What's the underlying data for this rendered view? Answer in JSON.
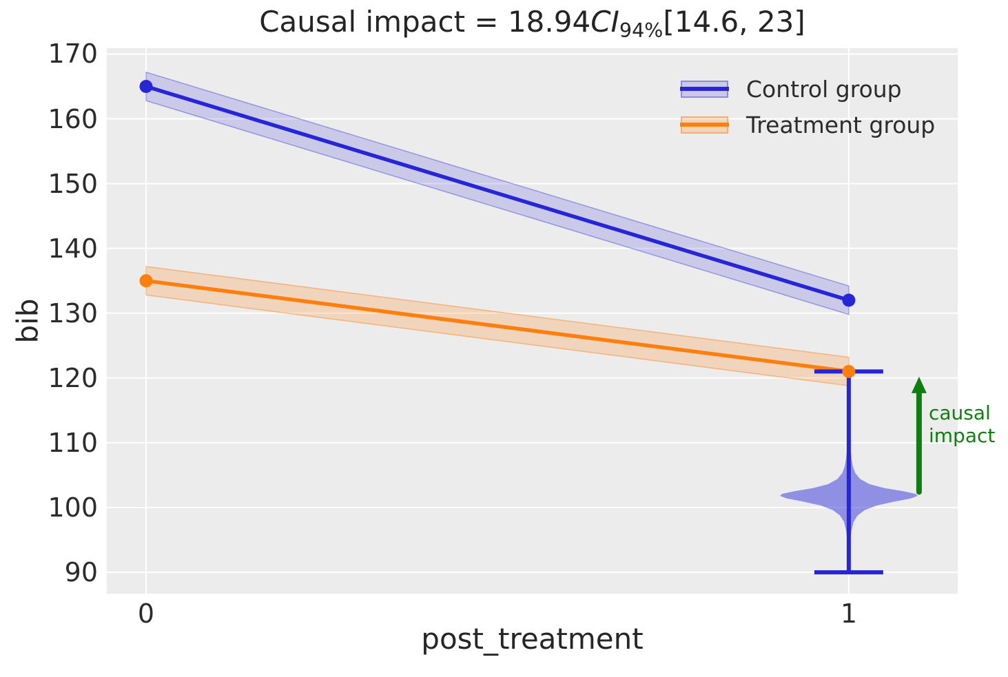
{
  "figure": {
    "background": "#ffffff",
    "plot_background": "#ececec",
    "grid_color": "#ffffff",
    "text_color": "#262626"
  },
  "chart_data": {
    "type": "line",
    "title": "Causal impact = 18.94CI94%[14.6, 23]",
    "title_parts": {
      "prefix": "Causal impact = 18.94",
      "ci": "CI",
      "ci_sub": "94%",
      "interval": "[14.6, 23]"
    },
    "xlabel": "post_treatment",
    "ylabel": "bib",
    "xlim": [
      -0.0559,
      1.155
    ],
    "ylim": [
      86.7,
      170.9
    ],
    "xticks": [
      0,
      1
    ],
    "yticks": [
      90,
      100,
      110,
      120,
      130,
      140,
      150,
      160,
      170
    ],
    "grid": true,
    "legend_position": "upper right",
    "x": [
      0,
      1
    ],
    "series": [
      {
        "name": "Control group",
        "color": "#2626d8",
        "band_fill": "rgba(38,38,216,0.17)",
        "band_edge": "rgba(38,38,216,0.38)",
        "values": [
          165,
          132
        ],
        "ci_lower": [
          162.8,
          129.8
        ],
        "ci_upper": [
          167.2,
          134.2
        ]
      },
      {
        "name": "Treatment group",
        "color": "#ff7f0e",
        "band_fill": "rgba(255,127,14,0.22)",
        "band_edge": "rgba(255,127,14,0.45)",
        "values": [
          135,
          121
        ],
        "ci_lower": [
          132.8,
          118.8
        ],
        "ci_upper": [
          137.2,
          123.2
        ]
      }
    ],
    "impact_violin": {
      "x": 1,
      "color": "#2626d8",
      "fill": "rgba(38,38,216,0.47)",
      "whisker_low": 90,
      "whisker_high": 121,
      "cap_halfwidth": 0.049,
      "max_halfwidth": 0.098,
      "profile": [
        [
          113.5,
          0.004
        ],
        [
          111,
          0.012
        ],
        [
          109,
          0.025
        ],
        [
          107.5,
          0.04
        ],
        [
          106.3,
          0.06
        ],
        [
          105.3,
          0.095
        ],
        [
          104.4,
          0.165
        ],
        [
          103.6,
          0.3
        ],
        [
          103.0,
          0.52
        ],
        [
          102.5,
          0.8
        ],
        [
          102.1,
          0.97
        ],
        [
          101.8,
          1.0
        ],
        [
          101.4,
          0.9
        ],
        [
          100.9,
          0.66
        ],
        [
          100.3,
          0.4
        ],
        [
          99.6,
          0.23
        ],
        [
          98.8,
          0.13
        ],
        [
          97.8,
          0.07
        ],
        [
          96.5,
          0.04
        ],
        [
          95,
          0.022
        ],
        [
          93,
          0.012
        ],
        [
          91,
          0.004
        ]
      ]
    },
    "annotation": {
      "text": "causal impact",
      "color": "#0e7e0e",
      "arrow_x": 1.1,
      "arrow_from_y": 102.4,
      "arrow_to_y": 120.2
    }
  }
}
